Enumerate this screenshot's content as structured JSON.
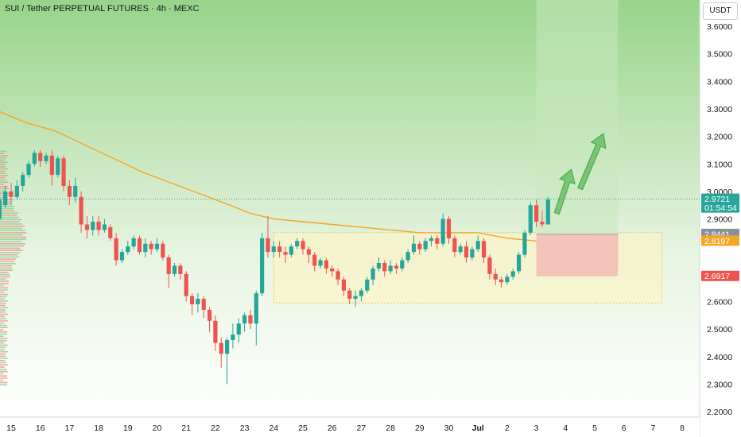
{
  "header": {
    "title": "SUI / Tether PERPETUAL FUTURES · 4h · MEXC"
  },
  "axis": {
    "unit": "USDT"
  },
  "colors": {
    "up": "#26a69a",
    "down": "#ef5350",
    "ma": "#f5a623",
    "target_zone": "#c9e8c0",
    "stop_zone": "#f2b8b5",
    "range_zone": "#fbf3c8",
    "background_top": "#98d38a",
    "background_bottom": "#ffffff",
    "arrow": "#5cb85c"
  },
  "price_tags": [
    {
      "value": "2.9721",
      "sub": "01:54:54",
      "color": "#26a69a"
    },
    {
      "value": "2.8441",
      "color": "#8a8f99"
    },
    {
      "value": "2.8197",
      "color": "#f5a623"
    },
    {
      "value": "2.6917",
      "color": "#ef5350"
    }
  ],
  "chart_data": {
    "type": "candlestick",
    "title": "SUI / Tether PERPETUAL FUTURES · 4h · MEXC",
    "ylabel": "USDT",
    "ylim": [
      2.17,
      3.65
    ],
    "y_ticks": [
      "3.6000",
      "3.5000",
      "3.4000",
      "3.3000",
      "3.2000",
      "3.1000",
      "3.0000",
      "2.9000",
      "2.6000",
      "2.5000",
      "2.4000",
      "2.3000",
      "2.2000"
    ],
    "x_ticks": [
      {
        "label": "15",
        "day": 15
      },
      {
        "label": "16",
        "day": 16
      },
      {
        "label": "17",
        "day": 17
      },
      {
        "label": "18",
        "day": 18
      },
      {
        "label": "19",
        "day": 19
      },
      {
        "label": "20",
        "day": 20
      },
      {
        "label": "21",
        "day": 21
      },
      {
        "label": "22",
        "day": 22
      },
      {
        "label": "23",
        "day": 23
      },
      {
        "label": "24",
        "day": 24
      },
      {
        "label": "25",
        "day": 25
      },
      {
        "label": "26",
        "day": 26
      },
      {
        "label": "27",
        "day": 27
      },
      {
        "label": "28",
        "day": 28
      },
      {
        "label": "29",
        "day": 29
      },
      {
        "label": "30",
        "day": 30
      },
      {
        "label": "Jul",
        "day": 31
      },
      {
        "label": "2",
        "day": 32
      },
      {
        "label": "3",
        "day": 33
      },
      {
        "label": "4",
        "day": 34
      },
      {
        "label": "5",
        "day": 35
      },
      {
        "label": "6",
        "day": 36
      },
      {
        "label": "7",
        "day": 37
      },
      {
        "label": "8",
        "day": 38
      }
    ],
    "range_box": {
      "day_start": 24,
      "day_end": 37.3,
      "price_low": 2.595,
      "price_high": 2.85
    },
    "target_zone": {
      "day_start": 33,
      "day_end": 35.8,
      "price_low": 2.8441,
      "price_high": 3.65
    },
    "stop_zone": {
      "day_start": 33,
      "day_end": 35.8,
      "price_low": 2.6917,
      "price_high": 2.8441
    },
    "current_price": 2.9721,
    "moving_average": [
      [
        14.6,
        3.29
      ],
      [
        15.5,
        3.25
      ],
      [
        16.5,
        3.22
      ],
      [
        17.5,
        3.17
      ],
      [
        18.5,
        3.12
      ],
      [
        19.5,
        3.07
      ],
      [
        20.5,
        3.03
      ],
      [
        21.5,
        2.99
      ],
      [
        22.5,
        2.95
      ],
      [
        23.2,
        2.92
      ],
      [
        24,
        2.9
      ],
      [
        25,
        2.89
      ],
      [
        26,
        2.88
      ],
      [
        27,
        2.87
      ],
      [
        28,
        2.86
      ],
      [
        29,
        2.85
      ],
      [
        30,
        2.85
      ],
      [
        31,
        2.85
      ],
      [
        32,
        2.83
      ],
      [
        33,
        2.82
      ]
    ],
    "arrows": [
      {
        "from": [
          33.7,
          2.92
        ],
        "to": [
          34.2,
          3.08
        ]
      },
      {
        "from": [
          34.5,
          3.01
        ],
        "to": [
          35.3,
          3.21
        ]
      }
    ],
    "candles": [
      [
        14.6,
        2.9,
        2.97,
        2.87,
        2.98
      ],
      [
        14.8,
        2.95,
        3.0,
        2.94,
        3.02
      ],
      [
        15.0,
        3.0,
        2.98,
        2.95,
        3.03
      ],
      [
        15.2,
        2.98,
        3.02,
        2.97,
        3.04
      ],
      [
        15.4,
        3.02,
        3.06,
        3.0,
        3.07
      ],
      [
        15.6,
        3.06,
        3.1,
        3.05,
        3.11
      ],
      [
        15.8,
        3.1,
        3.14,
        3.09,
        3.15
      ],
      [
        16.0,
        3.14,
        3.11,
        3.09,
        3.15
      ],
      [
        16.2,
        3.11,
        3.13,
        3.1,
        3.14
      ],
      [
        16.4,
        3.13,
        3.06,
        3.02,
        3.15
      ],
      [
        16.6,
        3.06,
        3.12,
        3.05,
        3.13
      ],
      [
        16.8,
        3.12,
        3.02,
        3.0,
        3.13
      ],
      [
        17.0,
        3.02,
        2.98,
        2.95,
        3.04
      ],
      [
        17.2,
        2.98,
        3.02,
        2.96,
        3.05
      ],
      [
        17.4,
        2.98,
        2.88,
        2.85,
        3.0
      ],
      [
        17.6,
        2.88,
        2.86,
        2.83,
        2.91
      ],
      [
        17.8,
        2.86,
        2.89,
        2.84,
        2.91
      ],
      [
        18.0,
        2.89,
        2.86,
        2.84,
        2.91
      ],
      [
        18.2,
        2.86,
        2.88,
        2.85,
        2.9
      ],
      [
        18.4,
        2.87,
        2.83,
        2.82,
        2.88
      ],
      [
        18.6,
        2.83,
        2.75,
        2.73,
        2.85
      ],
      [
        18.8,
        2.75,
        2.78,
        2.74,
        2.79
      ],
      [
        19.0,
        2.78,
        2.8,
        2.77,
        2.82
      ],
      [
        19.2,
        2.8,
        2.83,
        2.79,
        2.84
      ],
      [
        19.4,
        2.83,
        2.78,
        2.77,
        2.84
      ],
      [
        19.6,
        2.78,
        2.81,
        2.76,
        2.83
      ],
      [
        19.8,
        2.81,
        2.79,
        2.77,
        2.82
      ],
      [
        20.0,
        2.79,
        2.81,
        2.78,
        2.83
      ],
      [
        20.2,
        2.81,
        2.76,
        2.75,
        2.82
      ],
      [
        20.4,
        2.76,
        2.7,
        2.65,
        2.77
      ],
      [
        20.6,
        2.7,
        2.73,
        2.69,
        2.74
      ],
      [
        20.8,
        2.73,
        2.7,
        2.68,
        2.74
      ],
      [
        21.0,
        2.7,
        2.62,
        2.6,
        2.71
      ],
      [
        21.2,
        2.62,
        2.59,
        2.55,
        2.63
      ],
      [
        21.4,
        2.59,
        2.61,
        2.56,
        2.63
      ],
      [
        21.6,
        2.61,
        2.57,
        2.54,
        2.62
      ],
      [
        21.8,
        2.57,
        2.53,
        2.49,
        2.58
      ],
      [
        22.0,
        2.53,
        2.45,
        2.42,
        2.55
      ],
      [
        22.2,
        2.45,
        2.41,
        2.36,
        2.47
      ],
      [
        22.4,
        2.41,
        2.46,
        2.3,
        2.47
      ],
      [
        22.6,
        2.46,
        2.48,
        2.43,
        2.52
      ],
      [
        22.8,
        2.48,
        2.52,
        2.45,
        2.54
      ],
      [
        23.0,
        2.52,
        2.55,
        2.49,
        2.56
      ],
      [
        23.2,
        2.55,
        2.52,
        2.5,
        2.57
      ],
      [
        23.4,
        2.52,
        2.63,
        2.44,
        2.64
      ],
      [
        23.6,
        2.63,
        2.83,
        2.62,
        2.85
      ],
      [
        23.8,
        2.83,
        2.78,
        2.76,
        2.91
      ],
      [
        24.0,
        2.78,
        2.8,
        2.76,
        2.82
      ],
      [
        24.2,
        2.8,
        2.78,
        2.76,
        2.82
      ],
      [
        24.4,
        2.78,
        2.77,
        2.74,
        2.8
      ],
      [
        24.6,
        2.77,
        2.8,
        2.76,
        2.81
      ],
      [
        24.8,
        2.8,
        2.82,
        2.79,
        2.83
      ],
      [
        25.0,
        2.82,
        2.79,
        2.77,
        2.83
      ],
      [
        25.2,
        2.79,
        2.77,
        2.74,
        2.8
      ],
      [
        25.4,
        2.77,
        2.73,
        2.71,
        2.78
      ],
      [
        25.6,
        2.73,
        2.75,
        2.72,
        2.76
      ],
      [
        25.8,
        2.75,
        2.72,
        2.7,
        2.76
      ],
      [
        26.0,
        2.72,
        2.71,
        2.69,
        2.73
      ],
      [
        26.2,
        2.71,
        2.68,
        2.66,
        2.72
      ],
      [
        26.4,
        2.68,
        2.64,
        2.62,
        2.69
      ],
      [
        26.6,
        2.64,
        2.61,
        2.59,
        2.65
      ],
      [
        26.8,
        2.61,
        2.62,
        2.58,
        2.64
      ],
      [
        27.0,
        2.62,
        2.64,
        2.6,
        2.65
      ],
      [
        27.2,
        2.64,
        2.68,
        2.63,
        2.69
      ],
      [
        27.4,
        2.68,
        2.72,
        2.66,
        2.73
      ],
      [
        27.6,
        2.72,
        2.74,
        2.71,
        2.76
      ],
      [
        27.8,
        2.74,
        2.71,
        2.69,
        2.75
      ],
      [
        28.0,
        2.71,
        2.73,
        2.7,
        2.75
      ],
      [
        28.2,
        2.73,
        2.72,
        2.7,
        2.74
      ],
      [
        28.4,
        2.72,
        2.75,
        2.71,
        2.76
      ],
      [
        28.6,
        2.75,
        2.78,
        2.74,
        2.79
      ],
      [
        28.8,
        2.78,
        2.81,
        2.77,
        2.84
      ],
      [
        29.0,
        2.81,
        2.79,
        2.77,
        2.82
      ],
      [
        29.2,
        2.79,
        2.82,
        2.78,
        2.83
      ],
      [
        29.4,
        2.82,
        2.83,
        2.8,
        2.84
      ],
      [
        29.6,
        2.83,
        2.81,
        2.79,
        2.84
      ],
      [
        29.8,
        2.81,
        2.9,
        2.8,
        2.92
      ],
      [
        30.0,
        2.9,
        2.83,
        2.81,
        2.91
      ],
      [
        30.2,
        2.83,
        2.78,
        2.76,
        2.84
      ],
      [
        30.4,
        2.78,
        2.8,
        2.77,
        2.81
      ],
      [
        30.6,
        2.8,
        2.76,
        2.74,
        2.82
      ],
      [
        30.8,
        2.76,
        2.79,
        2.75,
        2.8
      ],
      [
        31.0,
        2.79,
        2.82,
        2.78,
        2.84
      ],
      [
        31.2,
        2.82,
        2.76,
        2.74,
        2.83
      ],
      [
        31.4,
        2.76,
        2.7,
        2.68,
        2.77
      ],
      [
        31.6,
        2.7,
        2.68,
        2.66,
        2.72
      ],
      [
        31.8,
        2.68,
        2.67,
        2.65,
        2.69
      ],
      [
        32.0,
        2.67,
        2.69,
        2.66,
        2.7
      ],
      [
        32.2,
        2.69,
        2.71,
        2.68,
        2.72
      ],
      [
        32.4,
        2.71,
        2.77,
        2.7,
        2.78
      ],
      [
        32.6,
        2.77,
        2.85,
        2.76,
        2.86
      ],
      [
        32.8,
        2.85,
        2.95,
        2.84,
        2.96
      ],
      [
        33.0,
        2.95,
        2.89,
        2.87,
        2.97
      ],
      [
        33.2,
        2.89,
        2.88,
        2.87,
        2.93
      ],
      [
        33.4,
        2.88,
        2.97,
        2.88,
        2.98
      ]
    ]
  }
}
